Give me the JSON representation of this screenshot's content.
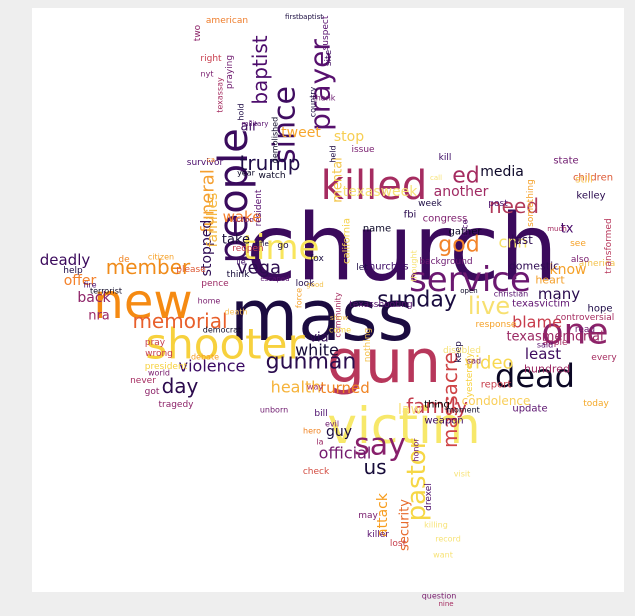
{
  "background": "#eeeeee",
  "canvas_color": "#ffffff",
  "palette": [
    "#1b0b40",
    "#4a0c6b",
    "#781c6d",
    "#a52c60",
    "#cf4446",
    "#ed6925",
    "#fb9b06",
    "#f7d13d",
    "#fcffa4"
  ],
  "words": [
    {
      "t": "church",
      "c": "#3b0a5c"
    },
    {
      "t": "mass",
      "c": "#1b0b40"
    },
    {
      "t": "gun",
      "c": "#b7375b"
    },
    {
      "t": "victim",
      "c": "#f7e86a"
    },
    {
      "t": "new",
      "c": "#f58a12"
    },
    {
      "t": "people",
      "c": "#3a0b5d"
    },
    {
      "t": "shooter",
      "c": "#f7d13d"
    },
    {
      "t": "killed",
      "c": "#a52c60"
    },
    {
      "t": "service",
      "c": "#6b1870"
    },
    {
      "t": "one",
      "c": "#8d2369"
    },
    {
      "t": "dead",
      "c": "#0b0724"
    },
    {
      "t": "say",
      "c": "#871f6b"
    },
    {
      "t": "time",
      "c": "#f8e55c"
    },
    {
      "t": "since",
      "c": "#3f0c60"
    },
    {
      "t": "prayer",
      "c": "#57106e"
    },
    {
      "t": "pastor",
      "c": "#f6d746"
    },
    {
      "t": "gunman",
      "c": "#2a0c4e"
    },
    {
      "t": "sunday",
      "c": "#1a0c40"
    },
    {
      "t": "member",
      "c": "#f08b19"
    },
    {
      "t": "family",
      "c": "#c43d4d"
    },
    {
      "t": "massacre",
      "c": "#cf4446"
    },
    {
      "t": "live",
      "c": "#f7e070"
    },
    {
      "t": "baptist",
      "c": "#4d0d6c"
    },
    {
      "t": "memorial",
      "c": "#e8602c"
    },
    {
      "t": "trump",
      "c": "#1f0c48"
    },
    {
      "t": "funeral",
      "c": "#f59f30"
    },
    {
      "t": "god",
      "c": "#f2842a"
    },
    {
      "t": "day",
      "c": "#2b0a4d"
    },
    {
      "t": "violence",
      "c": "#3a0963"
    },
    {
      "t": "need",
      "c": "#b13a5a"
    },
    {
      "t": "vega",
      "c": "#2c0b4f"
    },
    {
      "t": "ed",
      "c": "#a52c60"
    },
    {
      "t": "us",
      "c": "#170c3a"
    },
    {
      "t": "video",
      "c": "#f8d850"
    },
    {
      "t": "health",
      "c": "#f6b33a"
    },
    {
      "t": "turned",
      "c": "#f08424"
    },
    {
      "t": "white",
      "c": "#160b39"
    },
    {
      "t": "blame",
      "c": "#c83d4d"
    },
    {
      "t": "texasmemorial",
      "c": "#9b2964"
    },
    {
      "t": "least",
      "c": "#3f0c60"
    },
    {
      "t": "guy",
      "c": "#1b0c41"
    },
    {
      "t": "official",
      "c": "#741a6e"
    },
    {
      "t": "attack",
      "c": "#f79d1e"
    },
    {
      "t": "security",
      "c": "#e76a2b"
    },
    {
      "t": "many",
      "c": "#2a0c4e"
    },
    {
      "t": "know",
      "c": "#f5a128"
    },
    {
      "t": "texasweek",
      "c": "#f7e378"
    },
    {
      "t": "another",
      "c": "#a02a63"
    },
    {
      "t": "stop",
      "c": "#f7ce52"
    },
    {
      "t": "mental",
      "c": "#f3c74c"
    },
    {
      "t": "wake",
      "c": "#f47d2b"
    },
    {
      "t": "stopped",
      "c": "#2c0a51"
    },
    {
      "t": "families",
      "c": "#f5b942"
    },
    {
      "t": "take",
      "c": "#180c3a"
    },
    {
      "t": "tweet",
      "c": "#f7a72e"
    },
    {
      "t": "air",
      "c": "#3c0c5e"
    },
    {
      "t": "deadly",
      "c": "#3b0a5c"
    },
    {
      "t": "offer",
      "c": "#f4812a"
    },
    {
      "t": "back",
      "c": "#8e2368"
    },
    {
      "t": "nra",
      "c": "#9a2865"
    },
    {
      "t": "via",
      "c": "#2f0b53"
    },
    {
      "t": "media",
      "c": "#0d0829"
    },
    {
      "t": "cnn",
      "c": "#f5e068"
    },
    {
      "t": "tx",
      "c": "#4a0c6b"
    },
    {
      "t": "last",
      "c": "#2c0b4f"
    },
    {
      "t": "law",
      "c": "#f9e17a"
    },
    {
      "t": "hundred",
      "c": "#9d2a63"
    },
    {
      "t": "condolence",
      "c": "#f9cf5a"
    },
    {
      "t": "heart",
      "c": "#f4a12e"
    },
    {
      "t": "texasvictim",
      "c": "#5f1270"
    },
    {
      "t": "kelley",
      "c": "#2a0b4f"
    },
    {
      "t": "children",
      "c": "#dd5a36"
    },
    {
      "t": "america",
      "c": "#f3c24e"
    },
    {
      "t": "hope",
      "c": "#1f0c48"
    },
    {
      "t": "update",
      "c": "#5a116e"
    },
    {
      "t": "today",
      "c": "#f4a929"
    },
    {
      "t": "report",
      "c": "#c63f4d"
    },
    {
      "t": "apple",
      "c": "#a32a61"
    },
    {
      "t": "thing",
      "c": "#000004"
    },
    {
      "t": "weapon",
      "c": "#3c0a60"
    },
    {
      "t": "gather",
      "c": "#0c0826"
    },
    {
      "t": "name",
      "c": "#0c0826"
    },
    {
      "t": "congress",
      "c": "#7d1d6d"
    },
    {
      "t": "domestic",
      "c": "#2f0b53"
    },
    {
      "t": "churches",
      "c": "#3a0963"
    },
    {
      "t": "california",
      "c": "#f5d14c"
    },
    {
      "t": "state",
      "c": "#6e196e"
    },
    {
      "t": "still",
      "c": "#f8c34d"
    },
    {
      "t": "kill",
      "c": "#3a0963"
    },
    {
      "t": "fbi",
      "c": "#2a0b4f"
    },
    {
      "t": "background",
      "c": "#6a176e"
    },
    {
      "t": "post",
      "c": "#4c0c6b"
    },
    {
      "t": "american",
      "c": "#ee7d2c"
    },
    {
      "t": "two",
      "c": "#8c2368"
    },
    {
      "t": "right",
      "c": "#c83d4d"
    },
    {
      "t": "nyt",
      "c": "#781c6d"
    },
    {
      "t": "firstbaptist",
      "c": "#1a0c40"
    },
    {
      "t": "suspect",
      "c": "#57106e"
    },
    {
      "t": "site",
      "c": "#3f0c60"
    },
    {
      "t": "thank",
      "c": "#6a176e"
    },
    {
      "t": "country",
      "c": "#1e0c45"
    },
    {
      "t": "survivor",
      "c": "#4a0c6b"
    },
    {
      "t": "watch",
      "c": "#0c0826"
    },
    {
      "t": "year",
      "c": "#0c0826"
    },
    {
      "t": "reopen",
      "c": "#c63f4d"
    },
    {
      "t": "go",
      "c": "#1f0c48"
    },
    {
      "t": "look",
      "c": "#210c4a"
    },
    {
      "t": "fox",
      "c": "#1a0c40"
    },
    {
      "t": "let",
      "c": "#1e0c45"
    },
    {
      "t": "think",
      "c": "#160b39"
    },
    {
      "t": "lie",
      "c": "#3a0963"
    },
    {
      "t": "pence",
      "c": "#9b2964"
    },
    {
      "t": "please",
      "c": "#dd5a36"
    },
    {
      "t": "citizen",
      "c": "#f5a128"
    },
    {
      "t": "help",
      "c": "#1f0c48"
    },
    {
      "t": "de",
      "c": "#f08424"
    },
    {
      "t": "fire",
      "c": "#4a0c6b"
    },
    {
      "t": "pray",
      "c": "#c63f4d"
    },
    {
      "t": "wrong",
      "c": "#c63f4d"
    },
    {
      "t": "president",
      "c": "#f7d13d"
    },
    {
      "t": "world",
      "c": "#781c6d"
    },
    {
      "t": "never",
      "c": "#a52c60"
    },
    {
      "t": "got",
      "c": "#8c2368"
    },
    {
      "t": "tragedy",
      "c": "#8c2368"
    },
    {
      "t": "debate",
      "c": "#f5a128"
    },
    {
      "t": "democrat",
      "c": "#0c0826"
    },
    {
      "t": "home",
      "c": "#781c6d"
    },
    {
      "t": "death",
      "c": "#f7c45f"
    },
    {
      "t": "unborn",
      "c": "#6e196e"
    },
    {
      "t": "way",
      "c": "#a52c60"
    },
    {
      "t": "hero",
      "c": "#f08424"
    },
    {
      "t": "la",
      "c": "#9b2964"
    },
    {
      "t": "check",
      "c": "#d24c41"
    },
    {
      "t": "may",
      "c": "#781c6d"
    },
    {
      "t": "killer",
      "c": "#57106e"
    },
    {
      "t": "lost",
      "c": "#c63f4d"
    },
    {
      "t": "honor",
      "c": "#6e196e"
    },
    {
      "t": "drexel",
      "c": "#4a0c6b"
    },
    {
      "t": "keep",
      "c": "#1e0c45"
    },
    {
      "t": "moment",
      "c": "#0c0826"
    },
    {
      "t": "yesterday",
      "c": "#f7d13d"
    },
    {
      "t": "controversial",
      "c": "#a52c60"
    },
    {
      "t": "transformed",
      "c": "#b7375b"
    },
    {
      "t": "also",
      "c": "#781c6d"
    },
    {
      "t": "see",
      "c": "#f5a128"
    },
    {
      "t": "face",
      "c": "#4a0c6b"
    },
    {
      "t": "something",
      "c": "#f5a128"
    },
    {
      "t": "response",
      "c": "#f5a128"
    },
    {
      "t": "week",
      "c": "#1e0c45"
    },
    {
      "t": "nothing",
      "c": "#f3c24e"
    },
    {
      "t": "community",
      "c": "#a52c60"
    },
    {
      "t": "texasshooting",
      "c": "#57106e"
    },
    {
      "t": "issue",
      "c": "#781c6d"
    },
    {
      "t": "held",
      "c": "#1e0c45"
    },
    {
      "t": "demolished",
      "c": "#0c0826"
    },
    {
      "t": "military",
      "c": "#57106e"
    },
    {
      "t": "hold",
      "c": "#1e0c45"
    },
    {
      "t": "praying",
      "c": "#6e196e"
    },
    {
      "t": "texassay",
      "c": "#a52c60"
    },
    {
      "t": "terrorist",
      "c": "#0c0826"
    },
    {
      "t": "escaped",
      "c": "#57106e"
    },
    {
      "t": "christian",
      "c": "#57106e"
    },
    {
      "t": "sad",
      "c": "#781c6d"
    },
    {
      "t": "said",
      "c": "#57106e"
    },
    {
      "t": "read",
      "c": "#6e196e"
    },
    {
      "t": "nine",
      "c": "#a52c60"
    },
    {
      "t": "question",
      "c": "#781c6d"
    },
    {
      "t": "want",
      "c": "#f7e378"
    },
    {
      "t": "killing",
      "c": "#f7e378"
    },
    {
      "t": "record",
      "c": "#f7e378"
    },
    {
      "t": "visit",
      "c": "#f7e378"
    },
    {
      "t": "disabled",
      "c": "#f7e378"
    },
    {
      "t": "bill",
      "c": "#4a0c6b"
    },
    {
      "t": "evil",
      "c": "#6e196e"
    },
    {
      "t": "come",
      "c": "#f7d13d"
    },
    {
      "t": "thought",
      "c": "#f7e378"
    },
    {
      "t": "force",
      "c": "#f5a128"
    },
    {
      "t": "good",
      "c": "#f3c24e"
    },
    {
      "t": "show",
      "c": "#f3c24e"
    },
    {
      "t": "open",
      "c": "#0c0826"
    },
    {
      "t": "rifle",
      "c": "#1e0c45"
    },
    {
      "t": "resident",
      "c": "#57106e"
    },
    {
      "t": "call",
      "c": "#f7e378"
    },
    {
      "t": "much",
      "c": "#a52c60"
    },
    {
      "t": "every",
      "c": "#a52c60"
    },
    {
      "t": "ca",
      "c": "#f08424"
    },
    {
      "t": "action",
      "c": "#6e196e"
    },
    {
      "t": "assault",
      "c": "#f5a128"
    }
  ]
}
